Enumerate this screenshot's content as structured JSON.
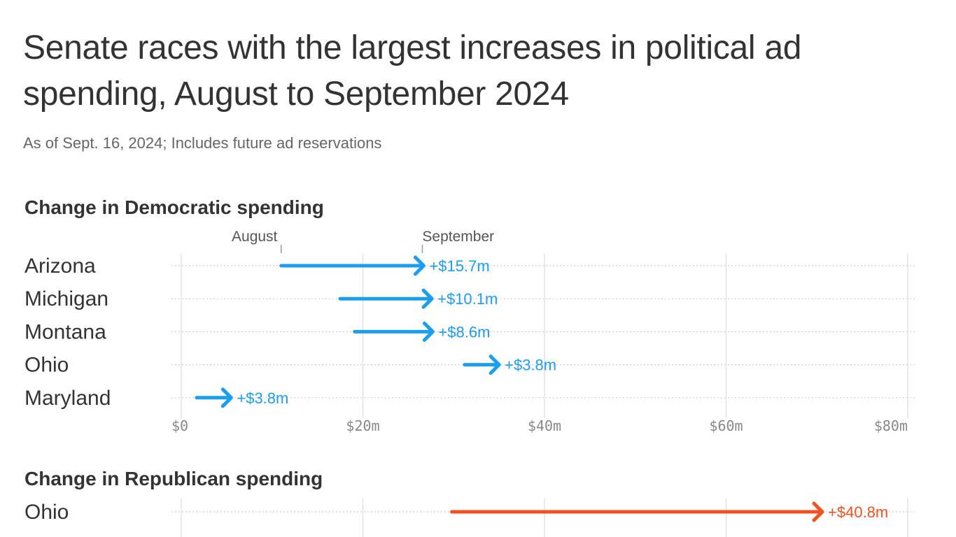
{
  "title": "Senate races with the largest increases in political ad spending, August to September 2024",
  "subtitle": "As of Sept. 16, 2024; Includes future ad reservations",
  "colors": {
    "democratic": "#1a9ef2",
    "republican": "#f4511e",
    "grid": "#e2e2e2",
    "text": "#333333"
  },
  "chart_data": [
    {
      "type": "arrow",
      "title": "Change in Democratic spending",
      "series_color": "#1a9ef2",
      "xlim": [
        0,
        80
      ],
      "x_ticks": [
        0,
        20,
        40,
        60,
        80
      ],
      "x_tick_labels": [
        "$0",
        "$20m",
        "$40m",
        "$60m",
        "$80m"
      ],
      "annotations": {
        "start": "August",
        "end": "September"
      },
      "rows": [
        {
          "label": "Arizona",
          "august": 11.0,
          "september": 26.7,
          "change": "+$15.7m"
        },
        {
          "label": "Michigan",
          "august": 17.5,
          "september": 27.6,
          "change": "+$10.1m"
        },
        {
          "label": "Montana",
          "august": 19.1,
          "september": 27.7,
          "change": "+$8.6m"
        },
        {
          "label": "Ohio",
          "august": 31.2,
          "september": 35.0,
          "change": "+$3.8m"
        },
        {
          "label": "Maryland",
          "august": 1.7,
          "september": 5.5,
          "change": "+$3.8m"
        }
      ]
    },
    {
      "type": "arrow",
      "title": "Change in Republican spending",
      "series_color": "#f4511e",
      "xlim": [
        0,
        80
      ],
      "x_ticks": [
        0,
        20,
        40,
        60,
        80
      ],
      "rows": [
        {
          "label": "Ohio",
          "august": 29.8,
          "september": 70.6,
          "change": "+$40.8m"
        }
      ]
    }
  ]
}
